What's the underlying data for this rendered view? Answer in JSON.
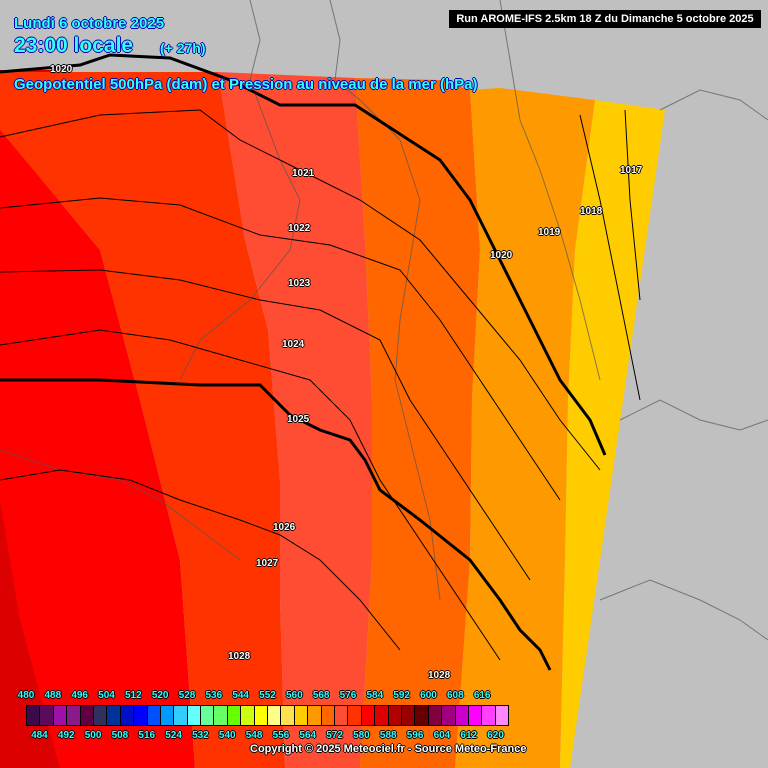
{
  "header": {
    "date": "Lundi 6 octobre 2025",
    "time": "23:00 locale",
    "lead": "(+ 27h)",
    "subtitle": "Geopotentiel 500hPa (dam) et Pression au niveau de la mer (hPa)",
    "run": "Run AROME-IFS 2.5km 18 Z du Dimanche 5 octobre 2025"
  },
  "isobar_labels": [
    "1020",
    "1021",
    "1022",
    "1023",
    "1024",
    "1025",
    "1026",
    "1027",
    "1028",
    "1028",
    "1020",
    "1019",
    "1018",
    "1017"
  ],
  "legend": {
    "values_top": [
      "480",
      "488",
      "496",
      "504",
      "512",
      "520",
      "528",
      "536",
      "544",
      "552",
      "560",
      "568",
      "576",
      "584",
      "592",
      "600",
      "608",
      "616"
    ],
    "values_bottom": [
      "484",
      "492",
      "500",
      "508",
      "516",
      "524",
      "532",
      "540",
      "548",
      "556",
      "564",
      "572",
      "580",
      "588",
      "596",
      "604",
      "612",
      "620"
    ],
    "colors": [
      "#3a0a4a",
      "#5c0a5e",
      "#a010a8",
      "#8a1a8a",
      "#600040",
      "#303060",
      "#003399",
      "#0010c8",
      "#0000ff",
      "#0050ff",
      "#0099ff",
      "#33ccff",
      "#66ffff",
      "#66ff99",
      "#66ff66",
      "#66ff00",
      "#ccff11",
      "#ffff00",
      "#ffff88",
      "#ffe050",
      "#ffcc00",
      "#ff9900",
      "#ff6600",
      "#ff4d33",
      "#ff3300",
      "#ff0000",
      "#dd0000",
      "#b00000",
      "#990000",
      "#660000",
      "#800040",
      "#a00080",
      "#cc00cc",
      "#ff00ff",
      "#ff40ff",
      "#ff88ff"
    ]
  },
  "copyright": "Copyright © 2025 Meteociel.fr - Source Meteo-France"
}
